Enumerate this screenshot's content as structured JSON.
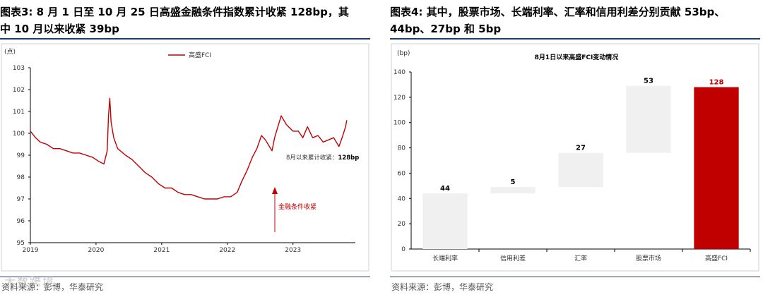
{
  "left": {
    "title_line1": "图表3:  8 月 1 日至 10 月 25 日高盛金融条件指数累计收紧 128bp，其",
    "title_line2": "中 10 月以来收紧 39bp",
    "source": "资料来源：彭博，华泰研究",
    "watermark": "大数跨境"
  },
  "right": {
    "title_line1": "图表4:  其中，股票市场、长端利率、汇率和信用利差分别贡献 53bp、",
    "title_line2": "44bp、27bp 和 5bp",
    "source": "资料来源：彭博，华泰研究"
  },
  "colors": {
    "accent": "#c00000",
    "bar_gray": "#f0f0f0",
    "rule": "#1f3b6e"
  },
  "chart_data": [
    {
      "type": "line",
      "title": "",
      "ylabel": "(点)",
      "legend": "top-center",
      "ylim": [
        95,
        103
      ],
      "yticks": [
        "95",
        "96",
        "97",
        "98",
        "99",
        "100",
        "101",
        "102",
        "103"
      ],
      "xticks": [
        "2019",
        "2020",
        "2021",
        "2022",
        "2023"
      ],
      "series": [
        {
          "name": "高盛FCI",
          "color": "#c00000",
          "x": [
            2019.0,
            2019.08,
            2019.15,
            2019.25,
            2019.35,
            2019.45,
            2019.55,
            2019.65,
            2019.75,
            2019.85,
            2019.95,
            2020.05,
            2020.12,
            2020.17,
            2020.19,
            2020.21,
            2020.23,
            2020.27,
            2020.33,
            2020.45,
            2020.55,
            2020.65,
            2020.75,
            2020.85,
            2020.95,
            2021.05,
            2021.15,
            2021.25,
            2021.35,
            2021.45,
            2021.55,
            2021.65,
            2021.75,
            2021.85,
            2021.95,
            2022.05,
            2022.15,
            2022.22,
            2022.3,
            2022.38,
            2022.45,
            2022.52,
            2022.58,
            2022.64,
            2022.68,
            2022.72,
            2022.77,
            2022.82,
            2022.9,
            2023.0,
            2023.08,
            2023.15,
            2023.22,
            2023.3,
            2023.38,
            2023.46,
            2023.54,
            2023.62,
            2023.7,
            2023.76,
            2023.8,
            2023.82
          ],
          "y": [
            100.1,
            99.8,
            99.6,
            99.5,
            99.3,
            99.3,
            99.2,
            99.1,
            99.1,
            99.0,
            98.9,
            98.7,
            98.6,
            99.2,
            100.8,
            101.6,
            100.5,
            99.8,
            99.3,
            99.0,
            98.8,
            98.5,
            98.2,
            98.0,
            97.7,
            97.5,
            97.5,
            97.3,
            97.2,
            97.2,
            97.1,
            97.0,
            97.0,
            97.0,
            97.1,
            97.1,
            97.3,
            97.8,
            98.3,
            98.9,
            99.3,
            99.9,
            99.7,
            99.4,
            99.2,
            99.8,
            100.3,
            100.8,
            100.4,
            100.1,
            100.1,
            99.8,
            100.3,
            99.8,
            99.9,
            99.6,
            99.7,
            99.8,
            99.4,
            99.9,
            100.3,
            100.6
          ]
        }
      ],
      "annotations": [
        {
          "text": "8月以来累计收紧：128bp",
          "bold_part": "128bp"
        },
        {
          "text": "金融条件收紧"
        }
      ]
    },
    {
      "type": "bar",
      "subtype": "waterfall",
      "title": "8月1日以来高盛FCI变动情况",
      "ylabel": "(bp)",
      "ylim": [
        0,
        140
      ],
      "yticks": [
        "0",
        "20",
        "40",
        "60",
        "80",
        "100",
        "120",
        "140"
      ],
      "categories": [
        "长端利率",
        "信用利差",
        "汇率",
        "股票市场",
        "高盛FCI"
      ],
      "values": [
        44,
        5,
        27,
        53,
        128
      ],
      "value_labels": [
        "44",
        "5",
        "27",
        "53",
        "128"
      ]
    }
  ]
}
